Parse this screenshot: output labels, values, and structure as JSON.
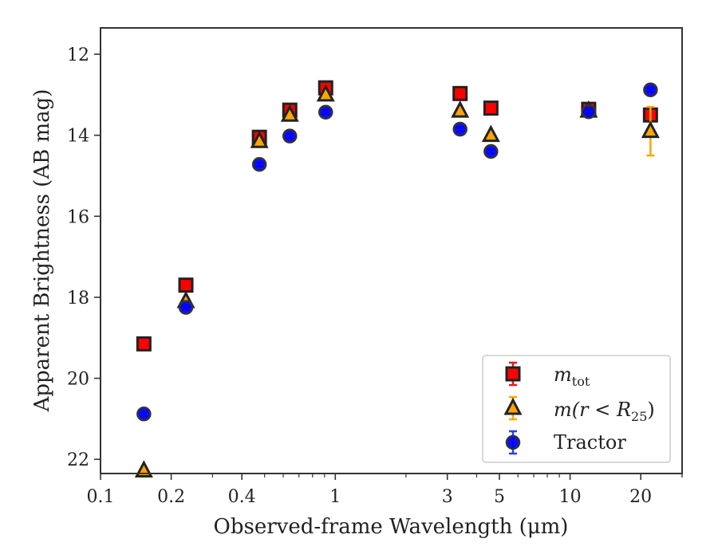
{
  "chart_data": {
    "type": "scatter",
    "xlabel": "Observed-frame Wavelength (μm)",
    "ylabel": "Apparent Brightness (AB mag)",
    "x_scale": "log",
    "xlim": [
      0.1,
      30
    ],
    "ylim": [
      22.35,
      11.35
    ],
    "y_inverted": true,
    "x_ticks": [
      {
        "value": 0.1,
        "label": "0.1"
      },
      {
        "value": 0.2,
        "label": "0.2"
      },
      {
        "value": 0.4,
        "label": "0.4"
      },
      {
        "value": 1,
        "label": "1"
      },
      {
        "value": 3,
        "label": "3"
      },
      {
        "value": 5,
        "label": "5"
      },
      {
        "value": 10,
        "label": "10"
      },
      {
        "value": 20,
        "label": "20"
      }
    ],
    "y_ticks": [
      {
        "value": 12,
        "label": "12"
      },
      {
        "value": 14,
        "label": "14"
      },
      {
        "value": 16,
        "label": "16"
      },
      {
        "value": 18,
        "label": "18"
      },
      {
        "value": 20,
        "label": "20"
      },
      {
        "value": 22,
        "label": "22"
      }
    ],
    "grid": false,
    "legend_position": "bottom-right",
    "series": [
      {
        "name": "m_tot",
        "legend_main": "m",
        "legend_sub": "tot",
        "marker": "square",
        "color": "#ff0000",
        "error_color": "#e31a1c",
        "x": [
          0.153,
          0.231,
          0.475,
          0.64,
          0.91,
          3.4,
          4.6,
          12.0,
          22.0
        ],
        "y": [
          19.15,
          17.7,
          14.05,
          13.38,
          12.83,
          12.97,
          13.33,
          13.36,
          13.5
        ],
        "yerr": [
          0.05,
          0.05,
          0.05,
          0.05,
          0.05,
          0.05,
          0.05,
          0.05,
          0.15
        ]
      },
      {
        "name": "m(r < R_25)",
        "legend_main": "m(r < R",
        "legend_sub": "25",
        "legend_tail": ")",
        "marker": "triangle",
        "color": "#ffa500",
        "error_color": "#ffa500",
        "x": [
          0.153,
          0.231,
          0.475,
          0.64,
          0.91,
          3.4,
          4.6,
          12.0,
          22.0
        ],
        "y": [
          22.28,
          18.1,
          14.15,
          13.5,
          13.0,
          13.4,
          14.0,
          13.4,
          13.9
        ],
        "yerr": [
          0.05,
          0.05,
          0.05,
          0.05,
          0.05,
          0.05,
          0.05,
          0.05,
          0.6
        ]
      },
      {
        "name": "Tractor",
        "legend_main": "Tractor",
        "marker": "circle",
        "color": "#0000ff",
        "error_color": "#1f3fff",
        "x": [
          0.153,
          0.231,
          0.475,
          0.64,
          0.91,
          3.4,
          4.6,
          12.0,
          22.0
        ],
        "y": [
          20.88,
          18.25,
          14.72,
          14.02,
          13.43,
          13.85,
          14.4,
          13.42,
          12.88
        ],
        "yerr": [
          0.05,
          0.05,
          0.05,
          0.05,
          0.05,
          0.05,
          0.05,
          0.05,
          0.05
        ]
      }
    ]
  }
}
